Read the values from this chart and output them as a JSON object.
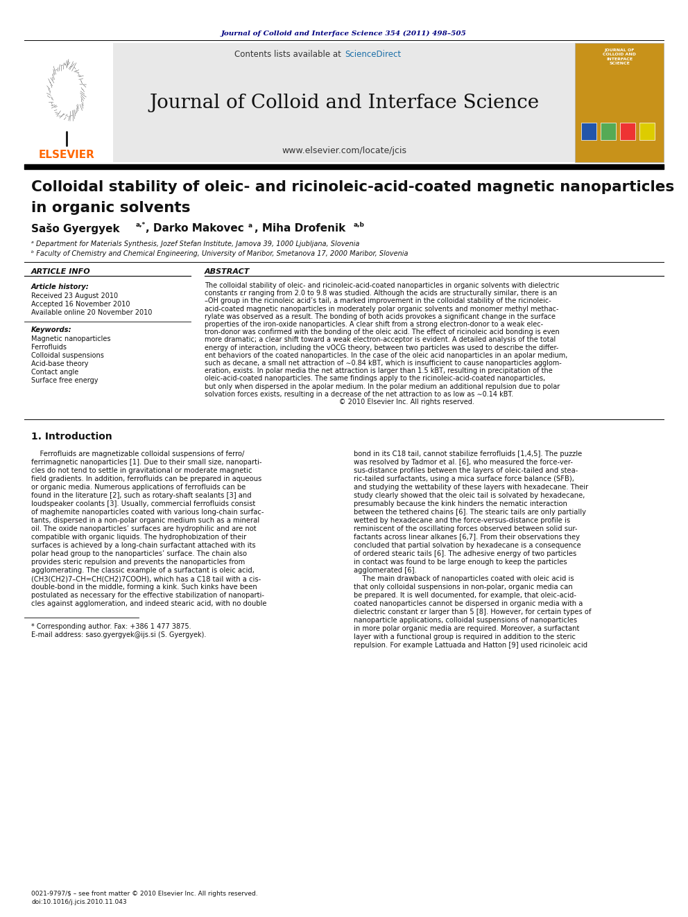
{
  "page_bg": "#ffffff",
  "top_journal_ref": "Journal of Colloid and Interface Science 354 (2011) 498–505",
  "top_journal_ref_color": "#000080",
  "header_bg": "#e8e8e8",
  "header_journal_title": "Journal of Colloid and Interface Science",
  "header_contents_text": "Contents lists available at ",
  "header_sciencedirect": "ScienceDirect",
  "header_sciencedirect_color": "#1a6ea8",
  "header_url": "www.elsevier.com/locate/jcis",
  "elsevier_color": "#ff6600",
  "article_title_line1": "Colloidal stability of oleic- and ricinoleic-acid-coated magnetic nanoparticles",
  "article_title_line2": "in organic solvents",
  "affil_a": "ᵃ Department for Materials Synthesis, Jozef Stefan Institute, Jamova 39, 1000 Ljubljana, Slovenia",
  "affil_b": "ᵇ Faculty of Chemistry and Chemical Engineering, University of Maribor, Smetanova 17, 2000 Maribor, Slovenia",
  "article_info_title": "ARTICLE INFO",
  "article_history_title": "Article history:",
  "received": "Received 23 August 2010",
  "accepted": "Accepted 16 November 2010",
  "available": "Available online 20 November 2010",
  "keywords_title": "Keywords:",
  "keywords": [
    "Magnetic nanoparticles",
    "Ferrofluids",
    "Colloidal suspensions",
    "Acid-base theory",
    "Contact angle",
    "Surface free energy"
  ],
  "abstract_title": "ABSTRACT",
  "abs_lines": [
    "The colloidal stability of oleic- and ricinoleic-acid-coated nanoparticles in organic solvents with dielectric",
    "constants εr ranging from 2.0 to 9.8 was studied. Although the acids are structurally similar, there is an",
    "–OH group in the ricinoleic acid’s tail, a marked improvement in the colloidal stability of the ricinoleic-",
    "acid-coated magnetic nanoparticles in moderately polar organic solvents and monomer methyl methac-",
    "rylate was observed as a result. The bonding of both acids provokes a significant change in the surface",
    "properties of the iron-oxide nanoparticles. A clear shift from a strong electron-donor to a weak elec-",
    "tron-donor was confirmed with the bonding of the oleic acid. The effect of ricinoleic acid bonding is even",
    "more dramatic; a clear shift toward a weak electron-acceptor is evident. A detailed analysis of the total",
    "energy of interaction, including the vOCG theory, between two particles was used to describe the differ-",
    "ent behaviors of the coated nanoparticles. In the case of the oleic acid nanoparticles in an apolar medium,",
    "such as decane, a small net attraction of ∼0.84 kBT, which is insufficient to cause nanoparticles agglom-",
    "eration, exists. In polar media the net attraction is larger than 1.5 kBT, resulting in precipitation of the",
    "oleic-acid-coated nanoparticles. The same findings apply to the ricinoleic-acid-coated nanoparticles,",
    "but only when dispersed in the apolar medium. In the polar medium an additional repulsion due to polar",
    "solvation forces exists, resulting in a decrease of the net attraction to as low as ∼0.14 kBT.",
    "                                                              © 2010 Elsevier Inc. All rights reserved."
  ],
  "section1_title": "1. Introduction",
  "intro_col1_lines": [
    "    Ferrofluids are magnetizable colloidal suspensions of ferro/",
    "ferrimagnetic nanoparticles [1]. Due to their small size, nanoparti-",
    "cles do not tend to settle in gravitational or moderate magnetic",
    "field gradients. In addition, ferrofluids can be prepared in aqueous",
    "or organic media. Numerous applications of ferrofluids can be",
    "found in the literature [2], such as rotary-shaft sealants [3] and",
    "loudspeaker coolants [3]. Usually, commercial ferrofluids consist",
    "of maghemite nanoparticles coated with various long-chain surfac-",
    "tants, dispersed in a non-polar organic medium such as a mineral",
    "oil. The oxide nanoparticles’ surfaces are hydrophilic and are not",
    "compatible with organic liquids. The hydrophobization of their",
    "surfaces is achieved by a long-chain surfactant attached with its",
    "polar head group to the nanoparticles’ surface. The chain also",
    "provides steric repulsion and prevents the nanoparticles from",
    "agglomerating. The classic example of a surfactant is oleic acid,",
    "(CH3(CH2)7–CH=CH(CH2)7COOH), which has a C18 tail with a cis-",
    "double-bond in the middle, forming a kink. Such kinks have been",
    "postulated as necessary for the effective stabilization of nanoparti-",
    "cles against agglomeration, and indeed stearic acid, with no double"
  ],
  "intro_col2_lines": [
    "bond in its C18 tail, cannot stabilize ferrofluids [1,4,5]. The puzzle",
    "was resolved by Tadmor et al. [6], who measured the force-ver-",
    "sus-distance profiles between the layers of oleic-tailed and stea-",
    "ric-tailed surfactants, using a mica surface force balance (SFB),",
    "and studying the wettability of these layers with hexadecane. Their",
    "study clearly showed that the oleic tail is solvated by hexadecane,",
    "presumably because the kink hinders the nematic interaction",
    "between the tethered chains [6]. The stearic tails are only partially",
    "wetted by hexadecane and the force-versus-distance profile is",
    "reminiscent of the oscillating forces observed between solid sur-",
    "factants across linear alkanes [6,7]. From their observations they",
    "concluded that partial solvation by hexadecane is a consequence",
    "of ordered stearic tails [6]. The adhesive energy of two particles",
    "in contact was found to be large enough to keep the particles",
    "agglomerated [6].",
    "    The main drawback of nanoparticles coated with oleic acid is",
    "that only colloidal suspensions in non-polar, organic media can",
    "be prepared. It is well documented, for example, that oleic-acid-",
    "coated nanoparticles cannot be dispersed in organic media with a",
    "dielectric constant εr larger than 5 [8]. However, for certain types of",
    "nanoparticle applications, colloidal suspensions of nanoparticles",
    "in more polar organic media are required. Moreover, a surfactant",
    "layer with a functional group is required in addition to the steric",
    "repulsion. For example Lattuada and Hatton [9] used ricinoleic acid"
  ],
  "footnote_asterisk": "* Corresponding author. Fax: +386 1 477 3875.",
  "footnote_email": "E-mail address: saso.gyergyek@ijs.si (S. Gyergyek).",
  "footer_issn": "0021-9797/$ – see front matter © 2010 Elsevier Inc. All rights reserved.",
  "footer_doi": "doi:10.1016/j.jcis.2010.11.043",
  "cover_colors": [
    "#2255aa",
    "#55aa55",
    "#ee3333",
    "#ddcc00"
  ]
}
